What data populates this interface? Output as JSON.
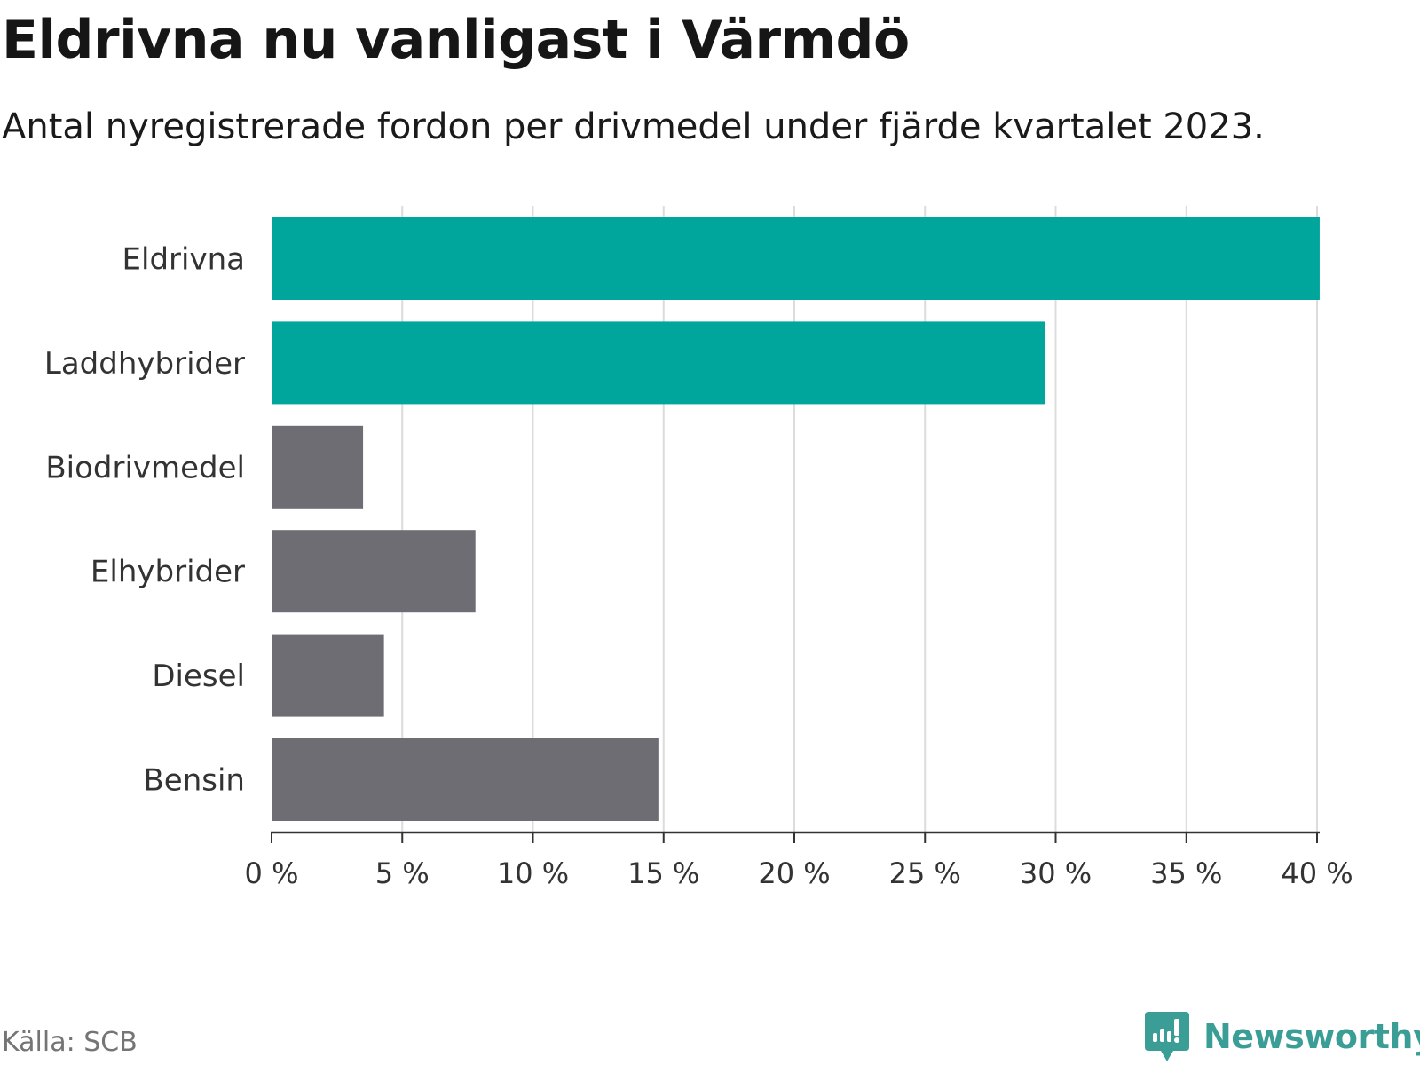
{
  "header": {
    "title": "Eldrivna nu vanligast i Värmdö",
    "subtitle": "Antal nyregistrerade fordon per drivmedel under fjärde kvartalet 2023."
  },
  "footer": {
    "source": "Källa: SCB",
    "brand": "Newsworthy"
  },
  "colors": {
    "highlight": "#00a59b",
    "default": "#6e6d73",
    "grid": "#dcdcdc",
    "axis": "#333333",
    "brand": "#3a9e96"
  },
  "chart_data": {
    "type": "bar",
    "orientation": "horizontal",
    "title": "Eldrivna nu vanligast i Värmdö",
    "subtitle": "Antal nyregistrerade fordon per drivmedel under fjärde kvartalet 2023.",
    "xlabel": "",
    "ylabel": "",
    "unit": "%",
    "xlim": [
      0,
      40
    ],
    "grid": true,
    "categories": [
      "Eldrivna",
      "Laddhybrider",
      "Biodrivmedel",
      "Elhybrider",
      "Diesel",
      "Bensin"
    ],
    "values": [
      40.1,
      29.6,
      3.5,
      7.8,
      4.3,
      14.8
    ],
    "highlighted": [
      true,
      true,
      false,
      false,
      false,
      false
    ],
    "ticks": [
      0,
      5,
      10,
      15,
      20,
      25,
      30,
      35,
      40
    ],
    "tick_labels": [
      "0 %",
      "5 %",
      "10 %",
      "15 %",
      "20 %",
      "25 %",
      "30 %",
      "35 %",
      "40 %"
    ]
  }
}
